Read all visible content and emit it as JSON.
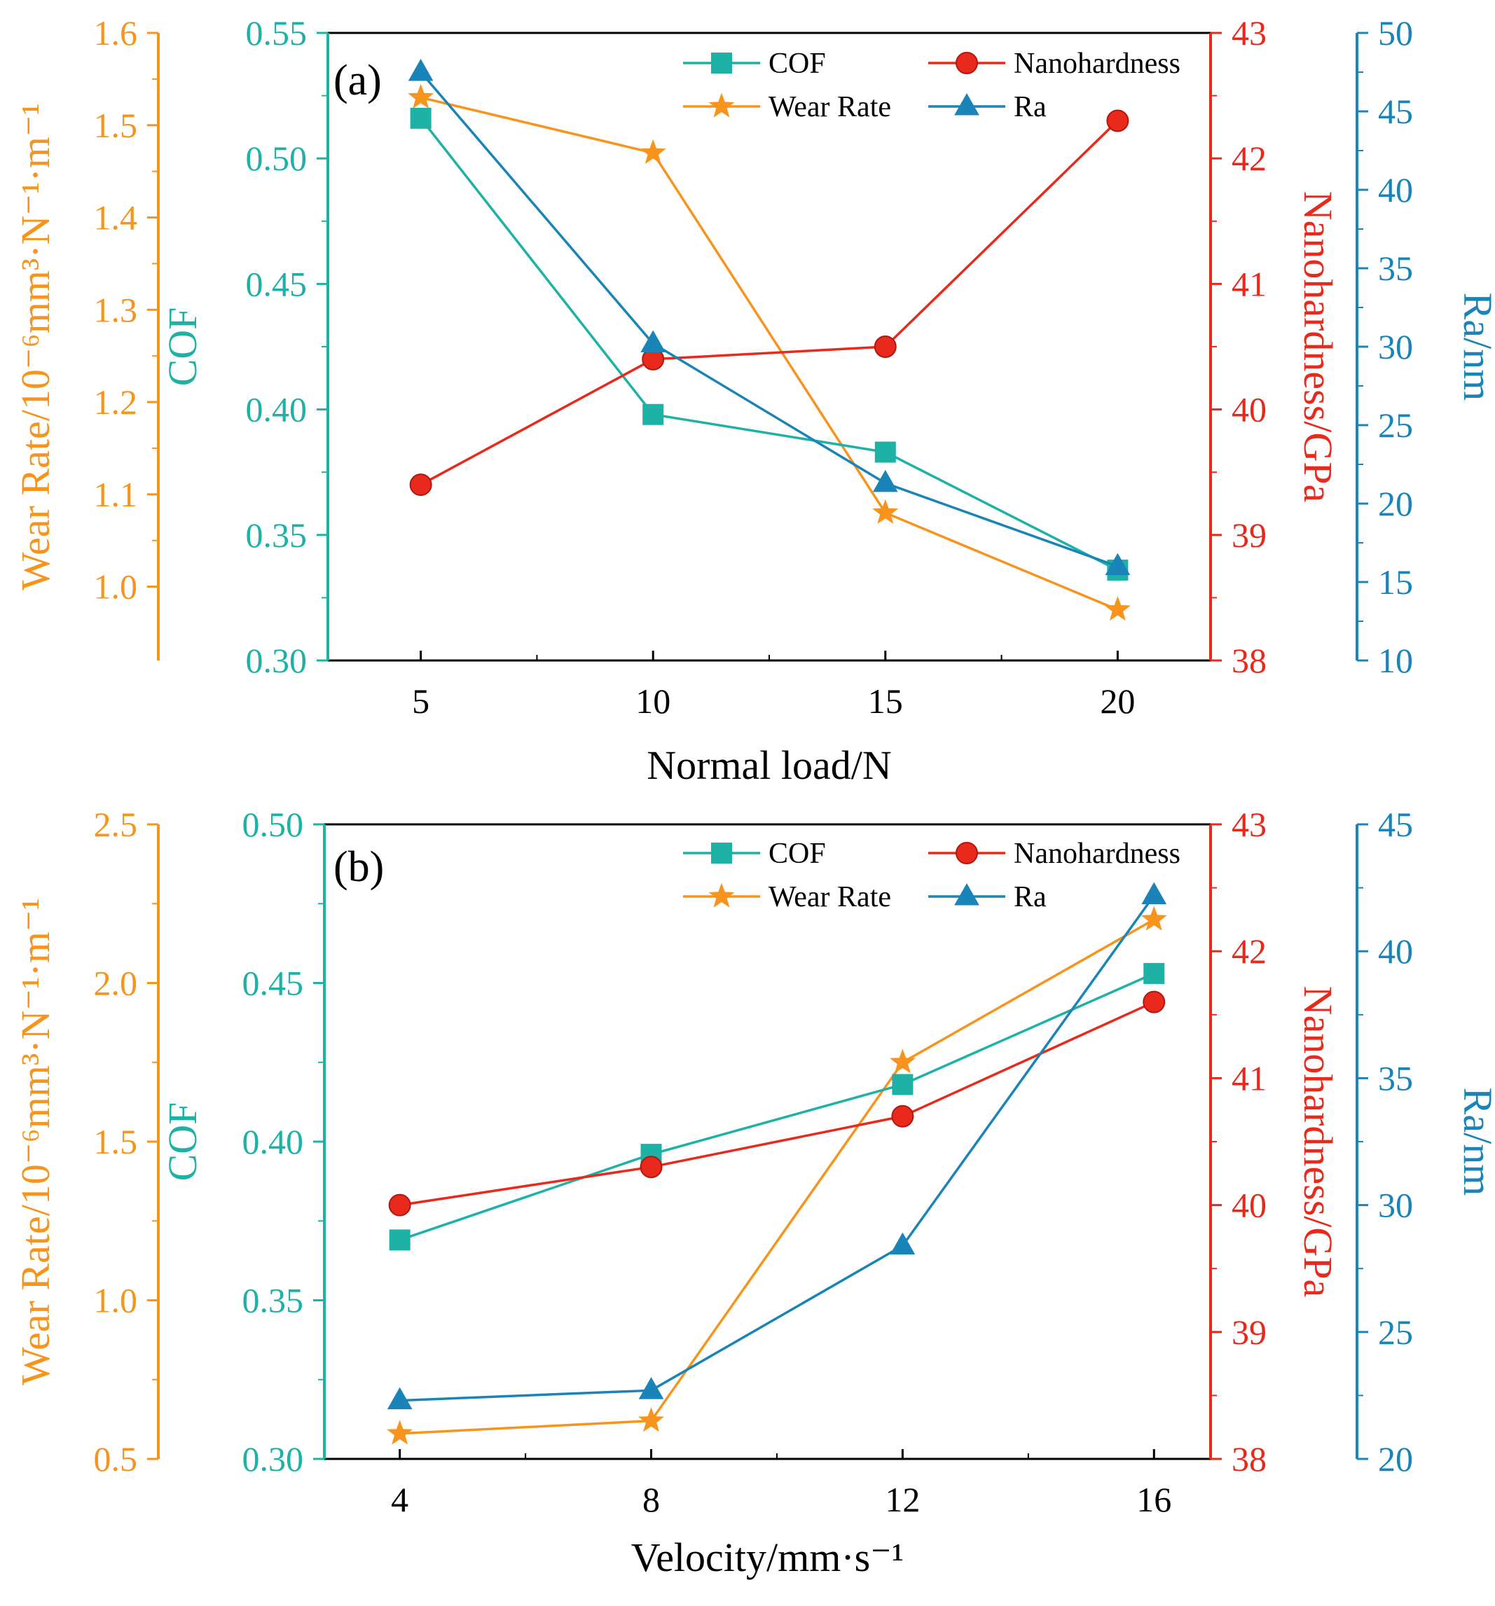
{
  "chart_data": [
    {
      "type": "line",
      "panel_label": "(a)",
      "xlabel": "Normal load/N",
      "x": [
        5,
        10,
        15,
        20
      ],
      "xlim": [
        3,
        22
      ],
      "x_ticks": [
        "5",
        "10",
        "15",
        "20"
      ],
      "legend_placement": "top-right",
      "axes": {
        "wear": {
          "label": "Wear Rate/10⁻⁶mm³·N⁻¹·m⁻¹",
          "ylim": [
            0.92,
            1.6
          ],
          "ticks": [
            "1.0",
            "1.1",
            "1.2",
            "1.3",
            "1.4",
            "1.5",
            "1.6"
          ],
          "color": "#F7941D"
        },
        "cof": {
          "label": "COF",
          "ylim": [
            0.3,
            0.55
          ],
          "ticks": [
            "0.30",
            "0.35",
            "0.40",
            "0.45",
            "0.50",
            "0.55"
          ],
          "color": "#1EB2A6"
        },
        "nano": {
          "label": "Nanohardness/GPa",
          "ylim": [
            38,
            43
          ],
          "ticks": [
            "38",
            "39",
            "40",
            "41",
            "42",
            "43"
          ],
          "color": "#E8291C"
        },
        "ra": {
          "label": "Ra/nm",
          "ylim": [
            10,
            50
          ],
          "ticks": [
            "10",
            "15",
            "20",
            "25",
            "30",
            "35",
            "40",
            "45",
            "50"
          ],
          "color": "#1A84B8"
        }
      },
      "series": [
        {
          "name": "COF",
          "axis": "cof",
          "marker": "square",
          "values": [
            0.516,
            0.398,
            0.383,
            0.336
          ]
        },
        {
          "name": "Nanohardness",
          "axis": "nano",
          "marker": "circle",
          "values": [
            39.4,
            40.4,
            40.5,
            42.3
          ]
        },
        {
          "name": "Wear Rate",
          "axis": "wear",
          "marker": "star",
          "values": [
            1.53,
            1.47,
            1.08,
            0.975
          ]
        },
        {
          "name": "Ra",
          "axis": "ra",
          "marker": "triangle",
          "values": [
            47.5,
            30.2,
            21.3,
            16.0
          ]
        }
      ]
    },
    {
      "type": "line",
      "panel_label": "(b)",
      "xlabel": "Velocity/mm·s⁻¹",
      "x": [
        4,
        8,
        12,
        16
      ],
      "xlim": [
        2.8,
        16.9
      ],
      "x_ticks": [
        "4",
        "8",
        "12",
        "16"
      ],
      "legend_placement": "top-right",
      "axes": {
        "wear": {
          "label": "Wear Rate/10⁻⁶mm³·N⁻¹·m⁻¹",
          "ylim": [
            0.5,
            2.5
          ],
          "ticks": [
            "0.5",
            "1.0",
            "1.5",
            "2.0",
            "2.5"
          ],
          "color": "#F7941D"
        },
        "cof": {
          "label": "COF",
          "ylim": [
            0.3,
            0.5
          ],
          "ticks": [
            "0.30",
            "0.35",
            "0.40",
            "0.45",
            "0.50"
          ],
          "color": "#1EB2A6"
        },
        "nano": {
          "label": "Nanohardness/GPa",
          "ylim": [
            38,
            43
          ],
          "ticks": [
            "38",
            "39",
            "40",
            "41",
            "42",
            "43"
          ],
          "color": "#E8291C"
        },
        "ra": {
          "label": "Ra/nm",
          "ylim": [
            20,
            45
          ],
          "ticks": [
            "20",
            "25",
            "30",
            "35",
            "40",
            "45"
          ],
          "color": "#1A84B8"
        }
      },
      "series": [
        {
          "name": "COF",
          "axis": "cof",
          "marker": "square",
          "values": [
            0.369,
            0.396,
            0.418,
            0.453
          ]
        },
        {
          "name": "Nanohardness",
          "axis": "nano",
          "marker": "circle",
          "values": [
            40.0,
            40.3,
            40.7,
            41.6
          ]
        },
        {
          "name": "Wear Rate",
          "axis": "wear",
          "marker": "star",
          "values": [
            0.58,
            0.62,
            1.75,
            2.2
          ]
        },
        {
          "name": "Ra",
          "axis": "ra",
          "marker": "triangle",
          "values": [
            22.3,
            22.7,
            28.4,
            42.2
          ]
        }
      ]
    }
  ]
}
